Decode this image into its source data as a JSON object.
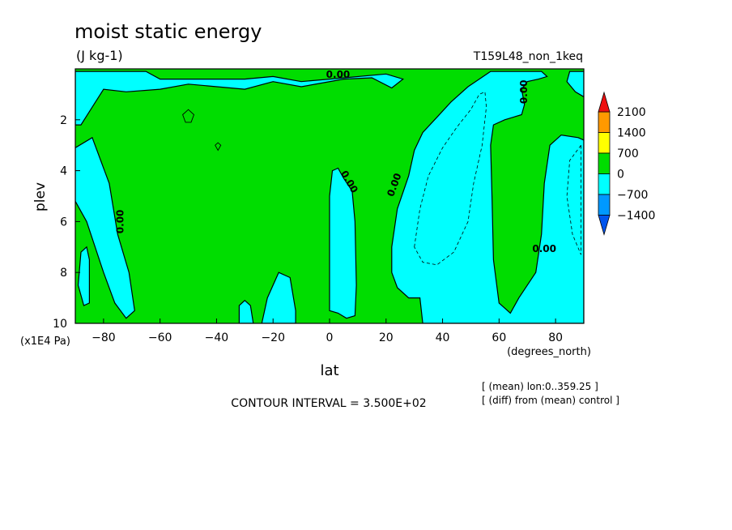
{
  "chart_data": {
    "type": "heatmap",
    "title": "moist static energy",
    "units": "(J kg-1)",
    "run_label": "T159L48_non_1keq",
    "xlabel": "lat",
    "x_units": "(degrees_north)",
    "ylabel": "plev",
    "y_units": "(x1E4 Pa)",
    "xlim": [
      -90,
      90
    ],
    "ylim": [
      0,
      10
    ],
    "y_inverted": true,
    "x_ticks": [
      -80,
      -60,
      -40,
      -20,
      0,
      20,
      40,
      60,
      80
    ],
    "x_tick_labels": [
      "−80",
      "−60",
      "−40",
      "−20",
      "0",
      "20",
      "40",
      "60",
      "80"
    ],
    "y_ticks": [
      2,
      4,
      6,
      8,
      10
    ],
    "y_tick_labels": [
      "2",
      "4",
      "6",
      "8",
      "10"
    ],
    "contour_label": "0.00",
    "contour_interval_text": "CONTOUR INTERVAL = 3.500E+02",
    "notes": [
      "[ (mean) lon:0..359.25 ]",
      "[ (diff) from (mean) control ]"
    ],
    "colorbar": {
      "levels": [
        -1400,
        -700,
        0,
        700,
        1400,
        2100
      ],
      "labels": [
        "2100",
        "1400",
        "700",
        "0",
        "−700",
        "−1400"
      ],
      "colors": {
        "above_2100": "#ee1010",
        "1400_2100": "#ff9900",
        "700_1400": "#ffff00",
        "0_700": "#00dd00",
        "-700_0": "#00ffff",
        "-1400_-700": "#0099ff",
        "below_-1400": "#0055ee"
      }
    },
    "background_color": "#00dd00",
    "negative_color": "#00ffff",
    "negative_regions": [
      {
        "name": "top-strip",
        "points": [
          [
            -90,
            0.1
          ],
          [
            -65,
            0.1
          ],
          [
            -60,
            0.4
          ],
          [
            -30,
            0.4
          ],
          [
            -20,
            0.3
          ],
          [
            -10,
            0.5
          ],
          [
            0,
            0.4
          ],
          [
            20,
            0.2
          ],
          [
            26,
            0.4
          ],
          [
            22,
            0.75
          ],
          [
            15,
            0.35
          ],
          [
            5,
            0.4
          ],
          [
            -10,
            0.7
          ],
          [
            -20,
            0.5
          ],
          [
            -30,
            0.8
          ],
          [
            -50,
            0.6
          ],
          [
            -60,
            0.8
          ],
          [
            -72,
            0.9
          ],
          [
            -80,
            0.8
          ],
          [
            -88,
            2.2
          ],
          [
            -90,
            2.2
          ]
        ]
      },
      {
        "name": "sh-polar-lobe",
        "points": [
          [
            -90,
            3.1
          ],
          [
            -84,
            2.7
          ],
          [
            -78,
            4.5
          ],
          [
            -75,
            6.5
          ],
          [
            -71,
            8
          ],
          [
            -69,
            9.5
          ],
          [
            -72,
            9.8
          ],
          [
            -76,
            9.2
          ],
          [
            -80,
            8
          ],
          [
            -86,
            6
          ],
          [
            -90,
            5.2
          ]
        ]
      },
      {
        "name": "sh-polar-blob",
        "points": [
          [
            -89,
            8.5
          ],
          [
            -88,
            7.2
          ],
          [
            -86,
            7.0
          ],
          [
            -85,
            7.5
          ],
          [
            -85,
            9.2
          ],
          [
            -87,
            9.3
          ]
        ]
      },
      {
        "name": "sh-bottom-lobe-1",
        "points": [
          [
            -32,
            10
          ],
          [
            -32,
            9.3
          ],
          [
            -30,
            9.1
          ],
          [
            -28,
            9.3
          ],
          [
            -27,
            10
          ]
        ]
      },
      {
        "name": "sh-bottom-lobe-2",
        "points": [
          [
            -24,
            10
          ],
          [
            -22,
            9
          ],
          [
            -18,
            8
          ],
          [
            -14,
            8.2
          ],
          [
            -12,
            9.5
          ],
          [
            -12,
            10
          ]
        ]
      },
      {
        "name": "equatorial-column",
        "points": [
          [
            0,
            9.5
          ],
          [
            0,
            5
          ],
          [
            1,
            4
          ],
          [
            3,
            3.9
          ],
          [
            5,
            4.3
          ],
          [
            8,
            4.8
          ],
          [
            9,
            6
          ],
          [
            9.5,
            8.5
          ],
          [
            9,
            9.7
          ],
          [
            6,
            9.8
          ],
          [
            3,
            9.6
          ]
        ]
      },
      {
        "name": "nh-mid-column",
        "points": [
          [
            22,
            7
          ],
          [
            24,
            5.5
          ],
          [
            28,
            4.2
          ],
          [
            30,
            3.2
          ],
          [
            33,
            2.5
          ],
          [
            38,
            1.9
          ],
          [
            43,
            1.3
          ],
          [
            49,
            0.7
          ],
          [
            53,
            0.4
          ],
          [
            57,
            0.1
          ],
          [
            75,
            0.1
          ],
          [
            77,
            0.3
          ],
          [
            74,
            0.4
          ],
          [
            70,
            0.5
          ],
          [
            68,
            0.8
          ],
          [
            69,
            1.4
          ],
          [
            68,
            1.8
          ],
          [
            62,
            2.0
          ],
          [
            58,
            2.2
          ],
          [
            57,
            3
          ],
          [
            57.5,
            5
          ],
          [
            58,
            7.5
          ],
          [
            60,
            9.2
          ],
          [
            64,
            9.6
          ],
          [
            67,
            9
          ],
          [
            70,
            8.5
          ],
          [
            73,
            8
          ],
          [
            75,
            6.5
          ],
          [
            76,
            4.5
          ],
          [
            78,
            3
          ],
          [
            82,
            2.6
          ],
          [
            88,
            2.7
          ],
          [
            90,
            2.8
          ],
          [
            90,
            10
          ],
          [
            33,
            10
          ],
          [
            32,
            9
          ],
          [
            28,
            9
          ],
          [
            24,
            8.6
          ],
          [
            22,
            8
          ]
        ]
      },
      {
        "name": "nh-top-blob",
        "points": [
          [
            85,
            0.1
          ],
          [
            90,
            0.1
          ],
          [
            90,
            1.1
          ],
          [
            87,
            0.9
          ],
          [
            84,
            0.5
          ]
        ]
      }
    ],
    "dashed_contours": [
      {
        "name": "nh-dashed-inner",
        "points": [
          [
            30,
            7
          ],
          [
            32,
            5.5
          ],
          [
            35,
            4.2
          ],
          [
            40,
            3.1
          ],
          [
            45,
            2.3
          ],
          [
            50,
            1.6
          ],
          [
            53,
            1.0
          ],
          [
            55,
            0.9
          ],
          [
            55.5,
            1.5
          ],
          [
            54,
            3
          ],
          [
            51,
            4.5
          ],
          [
            49,
            6
          ],
          [
            44,
            7.2
          ],
          [
            38,
            7.7
          ],
          [
            33,
            7.6
          ]
        ]
      },
      {
        "name": "nh-dashed-right",
        "points": [
          [
            89,
            3.0
          ],
          [
            85,
            3.6
          ],
          [
            84,
            5
          ],
          [
            86,
            6.5
          ],
          [
            89,
            7.3
          ]
        ]
      }
    ],
    "closed_contours": [
      {
        "name": "small-ring-1",
        "points": [
          [
            -52,
            1.8
          ],
          [
            -50,
            1.6
          ],
          [
            -48,
            1.8
          ],
          [
            -49,
            2.1
          ],
          [
            -51,
            2.1
          ]
        ]
      },
      {
        "name": "small-ring-2",
        "points": [
          [
            -40.5,
            3.0
          ],
          [
            -39.5,
            2.9
          ],
          [
            -38.5,
            3.0
          ],
          [
            -39.5,
            3.2
          ]
        ]
      }
    ],
    "contour_label_positions": [
      [
        3,
        0.35
      ],
      [
        -73,
        6
      ],
      [
        6,
        4.5
      ],
      [
        24,
        4.6
      ],
      [
        70,
        0.9
      ],
      [
        76,
        7.2
      ]
    ]
  }
}
